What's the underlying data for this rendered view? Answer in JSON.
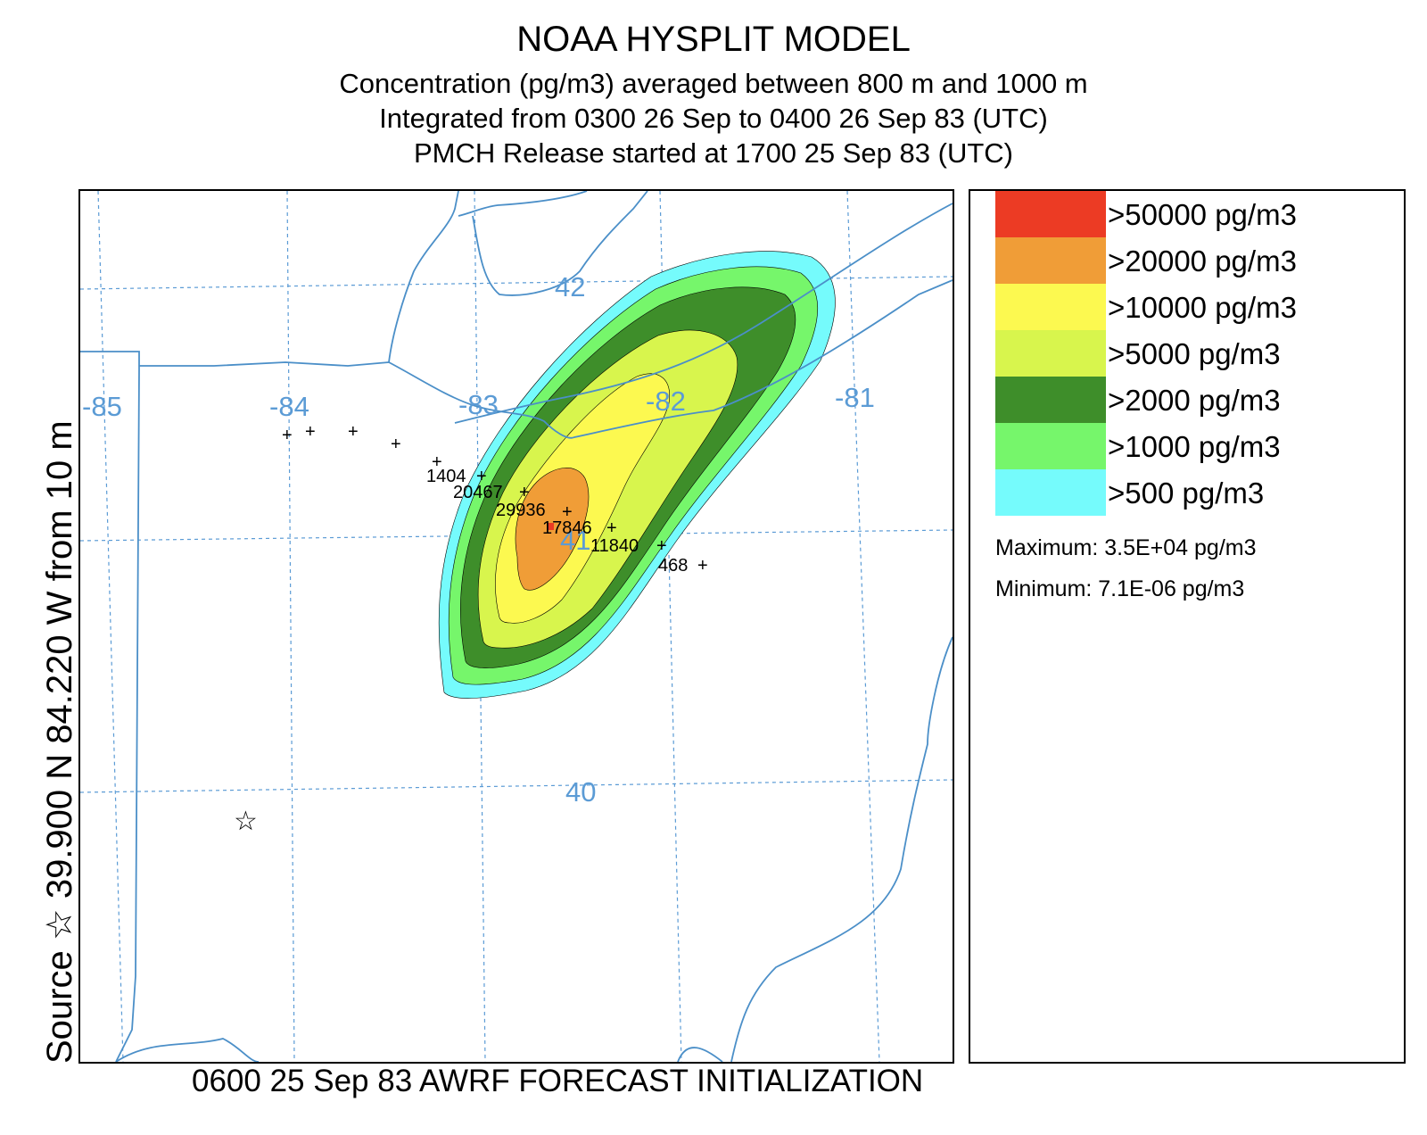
{
  "title": {
    "main": "NOAA HYSPLIT MODEL",
    "line2": "Concentration  (pg/m3) averaged between   800 m and  1000 m",
    "line3": "Integrated from 0300 26 Sep to 0400 26 Sep 83 (UTC)",
    "line4": "PMCH Release started at 1700 25 Sep 83 (UTC)"
  },
  "source_label": "Source ☆ 39.900  N  84.220  W    from   10 m",
  "footer": "0600 25 Sep 83 AWRF FORECAST INITIALIZATION",
  "map": {
    "lon_labels": [
      "-85",
      "-84",
      "-83",
      "-82",
      "-81"
    ],
    "lat_labels": [
      "42",
      "41",
      "40"
    ],
    "source": {
      "lat": 39.9,
      "lon": -84.22,
      "symbol": "☆"
    },
    "stations": [
      {
        "value": "",
        "symbol": "+"
      },
      {
        "value": "",
        "symbol": "+"
      },
      {
        "value": "",
        "symbol": "+"
      },
      {
        "value": "",
        "symbol": "+"
      },
      {
        "value": "",
        "symbol": "+"
      },
      {
        "value": "1404",
        "symbol": "+"
      },
      {
        "value": "20467",
        "symbol": "+"
      },
      {
        "value": "29936",
        "symbol": "+"
      },
      {
        "value": "17846",
        "symbol": "+"
      },
      {
        "value": "11840",
        "symbol": "+"
      },
      {
        "value": "468",
        "symbol": "+"
      }
    ],
    "colors": {
      "boundary": "#4b8fc8",
      "grid": "#5b9bd5",
      "grid_label": "#5b9bd5"
    }
  },
  "legend": {
    "items": [
      {
        "label": ">50000 pg/m3",
        "color": "#ec3b24"
      },
      {
        "label": ">20000 pg/m3",
        "color": "#f09d37"
      },
      {
        "label": ">10000 pg/m3",
        "color": "#fcf950"
      },
      {
        "label": ">5000 pg/m3",
        "color": "#d8f54d"
      },
      {
        "label": ">2000 pg/m3",
        "color": "#3e8e2a"
      },
      {
        "label": ">1000 pg/m3",
        "color": "#76f66b"
      },
      {
        "label": ">500 pg/m3",
        "color": "#75fbfc"
      }
    ],
    "maximum": "Maximum: 3.5E+04 pg/m3",
    "minimum": "Minimum: 7.1E-06 pg/m3"
  }
}
